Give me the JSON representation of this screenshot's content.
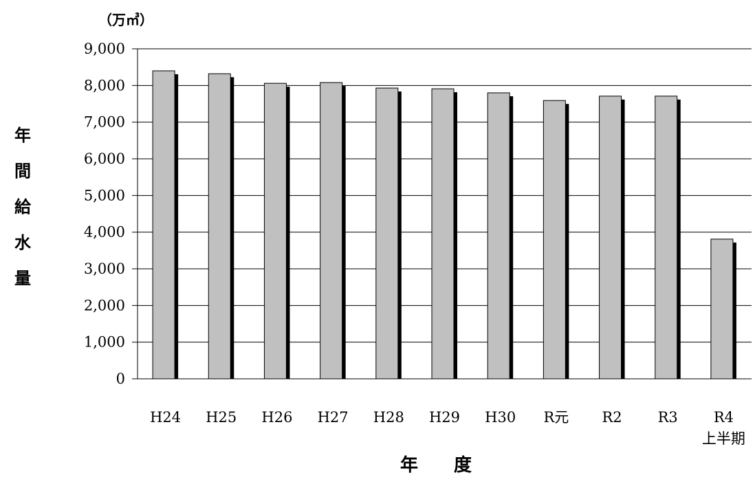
{
  "chart_data": {
    "type": "bar",
    "unit_label": "（万㎥）",
    "ylabel": "年間給水量",
    "xlabel": "年　　度",
    "categories": [
      "H24",
      "H25",
      "H26",
      "H27",
      "H28",
      "H29",
      "H30",
      "R元",
      "R2",
      "R3",
      "R4"
    ],
    "category_sublabels": [
      "",
      "",
      "",
      "",
      "",
      "",
      "",
      "",
      "",
      "",
      "上半期"
    ],
    "values": [
      8400,
      8320,
      8060,
      8080,
      7930,
      7910,
      7800,
      7590,
      7710,
      7710,
      3810
    ],
    "ylim": [
      0,
      9000
    ],
    "yticks": [
      0,
      1000,
      2000,
      3000,
      4000,
      5000,
      6000,
      7000,
      8000,
      9000
    ],
    "ytick_labels": [
      "0",
      "1,000",
      "2,000",
      "3,000",
      "4,000",
      "5,000",
      "6,000",
      "7,000",
      "8,000",
      "9,000"
    ],
    "grid": true,
    "colors": {
      "bar_fill": "#c0c0c0",
      "bar_stroke": "#000000",
      "bar_shadow": "#000000",
      "gridline": "#000000"
    }
  }
}
